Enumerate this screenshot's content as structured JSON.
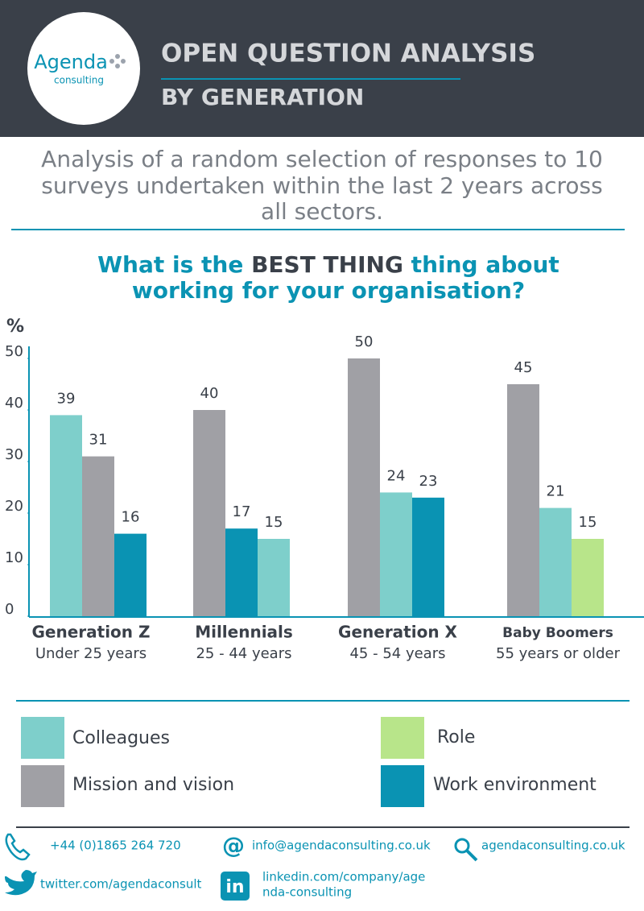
{
  "header": {
    "logo_name": "Agenda",
    "logo_sub": "consulting",
    "title": "OPEN QUESTION ANALYSIS",
    "subtitle": "BY GENERATION"
  },
  "intro": [
    "Analysis of a random selection of responses to 10",
    "surveys undertaken within the last 2 years across",
    "all sectors."
  ],
  "chart_data": {
    "type": "bar",
    "title_lines": [
      [
        "What is the ",
        "BEST THING",
        " thing about"
      ],
      [
        "working for your organisation?"
      ]
    ],
    "y_label": "%",
    "categories": [
      "Generation Z",
      "Millennials",
      "Generation X",
      "Baby Boomers"
    ],
    "category_subtitles": [
      "Under 25 years",
      "25 - 44 years",
      "45 - 54 years",
      "55 years or older"
    ],
    "bars": [
      [
        {
          "value": 39,
          "color": "#7ecfcb"
        },
        {
          "value": 31,
          "color": "#a0a0a5"
        },
        {
          "value": 16,
          "color": "#0a93b3"
        }
      ],
      [
        {
          "value": 40,
          "color": "#a0a0a5"
        },
        {
          "value": 17,
          "color": "#0a93b3"
        },
        {
          "value": 15,
          "color": "#7ecfcb"
        }
      ],
      [
        {
          "value": 50,
          "color": "#a0a0a5"
        },
        {
          "value": 24,
          "color": "#7ecfcb"
        },
        {
          "value": 23,
          "color": "#0a93b3"
        }
      ],
      [
        {
          "value": 45,
          "color": "#a0a0a5"
        },
        {
          "value": 21,
          "color": "#7ecfcb"
        },
        {
          "value": 15,
          "color": "#b8e58a"
        }
      ]
    ],
    "ylim": [
      0,
      50
    ],
    "yticks": [
      0,
      10,
      20,
      30,
      40,
      50
    ],
    "legend": [
      {
        "name": "Colleagues",
        "color": "#7ecfcb"
      },
      {
        "name": "Mission and vision",
        "color": "#a0a0a5"
      },
      {
        "name": "Role",
        "color": "#b8e58a"
      },
      {
        "name": "Work environment",
        "color": "#0a93b3"
      }
    ]
  },
  "contacts": {
    "phone": "+44 (0)1865 264 720",
    "email": "info@agendaconsulting.co.uk",
    "web": "agendaconsulting.co.uk",
    "twitter": "twitter.com/agendaconsult",
    "linkedin": [
      "linkedin.com/company/age",
      "nda-consulting"
    ]
  }
}
